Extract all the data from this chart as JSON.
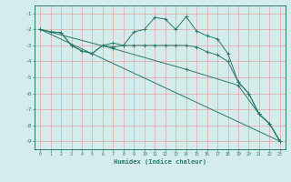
{
  "xlabel": "Humidex (Indice chaleur)",
  "xlim": [
    -0.5,
    23.5
  ],
  "ylim": [
    -9.5,
    -0.5
  ],
  "yticks": [
    -1,
    -2,
    -3,
    -4,
    -5,
    -6,
    -7,
    -8,
    -9
  ],
  "xticks": [
    0,
    1,
    2,
    3,
    4,
    5,
    6,
    7,
    8,
    9,
    10,
    11,
    12,
    13,
    14,
    15,
    16,
    17,
    18,
    19,
    20,
    21,
    22,
    23
  ],
  "background_color": "#d4ecec",
  "grid_color": "#e8a0a0",
  "line_color": "#2a7a6a",
  "line1_x": [
    0,
    1,
    2,
    3,
    4,
    5,
    6,
    7,
    8,
    9,
    10,
    11,
    12,
    13,
    14,
    15,
    16,
    17,
    18,
    19,
    20,
    21,
    22,
    23
  ],
  "line1_y": [
    -2.0,
    -2.15,
    -2.2,
    -3.0,
    -3.35,
    -3.5,
    -3.0,
    -2.85,
    -3.0,
    -2.15,
    -2.0,
    -1.25,
    -1.35,
    -2.0,
    -1.2,
    -2.1,
    -2.4,
    -2.6,
    -3.5,
    -5.3,
    -6.0,
    -7.3,
    -7.9,
    -9.0
  ],
  "line2_x": [
    0,
    1,
    2,
    3,
    4,
    5,
    6,
    7,
    8,
    9,
    10,
    11,
    12,
    13,
    14,
    15,
    16,
    17,
    18,
    19,
    20,
    21,
    22,
    23
  ],
  "line2_y": [
    -2.0,
    -2.15,
    -2.2,
    -3.0,
    -3.35,
    -3.5,
    -3.0,
    -3.1,
    -3.0,
    -3.0,
    -3.0,
    -3.0,
    -3.0,
    -3.0,
    -3.0,
    -3.1,
    -3.4,
    -3.6,
    -4.0,
    -5.3,
    -6.0,
    -7.3,
    -7.9,
    -9.0
  ],
  "line3_x": [
    0,
    23
  ],
  "line3_y": [
    -2.0,
    -9.0
  ],
  "line4_x": [
    0,
    7,
    14,
    19,
    21,
    22,
    23
  ],
  "line4_y": [
    -2.0,
    -3.2,
    -4.5,
    -5.5,
    -7.3,
    -7.9,
    -9.0
  ]
}
